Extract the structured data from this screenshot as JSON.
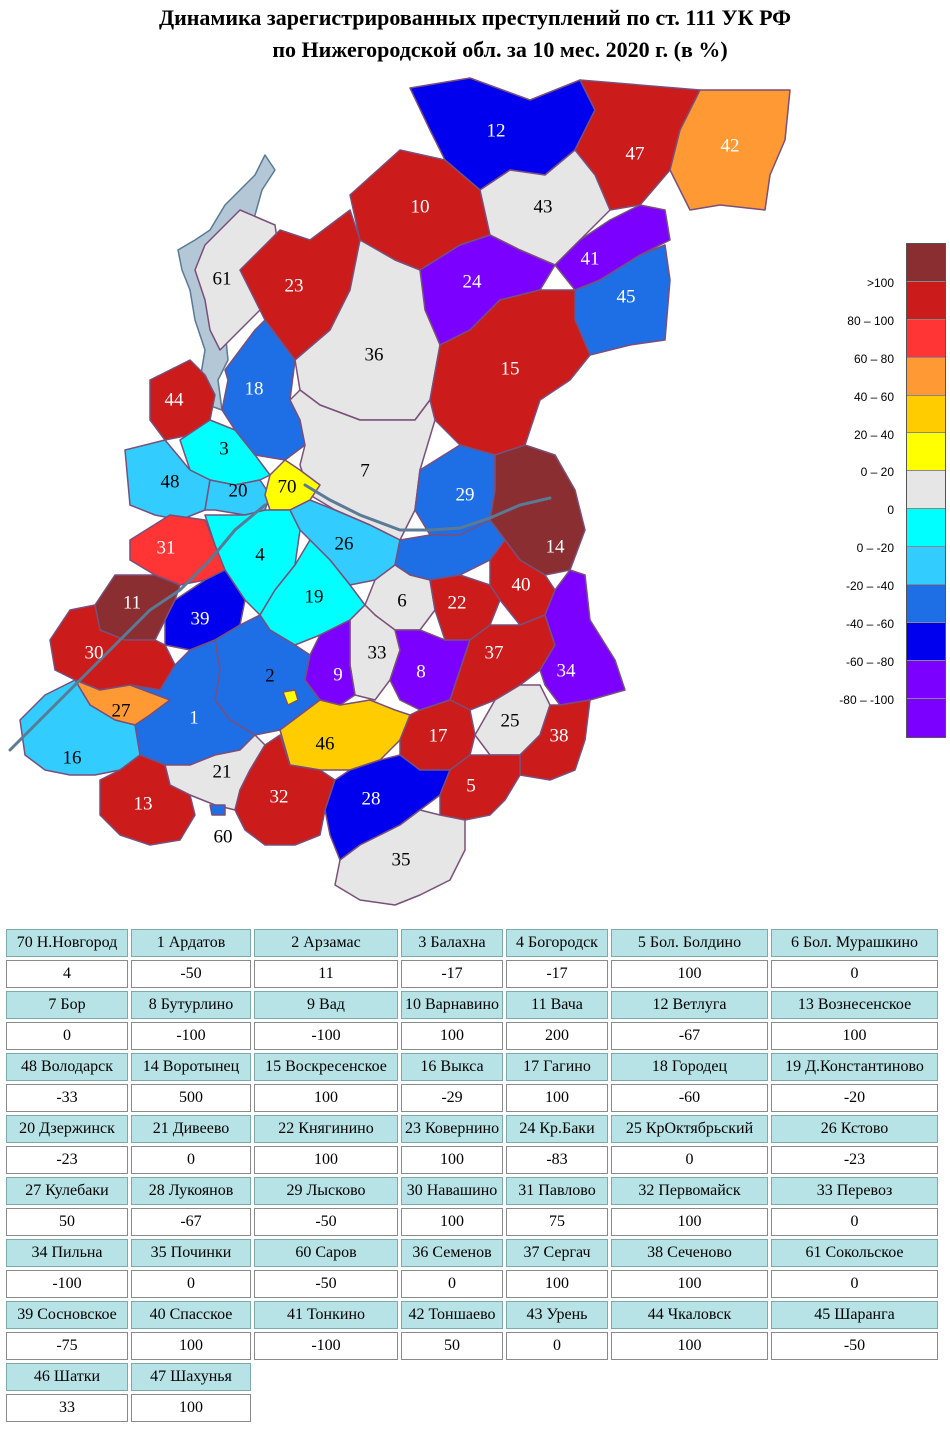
{
  "title": {
    "line1": "Динамика зарегистрированных преступлений по ст. 111 УК РФ",
    "line2": "по Нижегородской обл. за 10 мес. 2020 г. (в %)"
  },
  "legend": [
    {
      "label": "",
      "color": "#8b2e32"
    },
    {
      "label": ">100",
      "color": "#cc1b1b"
    },
    {
      "label": "80 – 100",
      "color": "#ff3535"
    },
    {
      "label": "60 – 80",
      "color": "#ff9933"
    },
    {
      "label": "40 – 60",
      "color": "#ffcc00"
    },
    {
      "label": "20 – 40",
      "color": "#ffff00"
    },
    {
      "label": "0 – 20",
      "color": "#e6e6e6"
    },
    {
      "label": "0",
      "color": "#00ffff"
    },
    {
      "label": "0 – -20",
      "color": "#33ccff"
    },
    {
      "label": "-20 – -40",
      "color": "#1e6fe6"
    },
    {
      "label": "-40 – -60",
      "color": "#0000ee"
    },
    {
      "label": "-60 – -80",
      "color": "#7b00ff"
    },
    {
      "label": "-80 – -100",
      "color": ""
    }
  ],
  "map_labels": [
    "12",
    "47",
    "42",
    "10",
    "43",
    "61",
    "23",
    "24",
    "41",
    "45",
    "36",
    "15",
    "18",
    "44",
    "3",
    "7",
    "48",
    "20",
    "70",
    "29",
    "14",
    "31",
    "4",
    "26",
    "11",
    "39",
    "19",
    "6",
    "22",
    "40",
    "30",
    "33",
    "8",
    "37",
    "34",
    "9",
    "2",
    "27",
    "1",
    "25",
    "46",
    "17",
    "38",
    "16",
    "21",
    "13",
    "32",
    "28",
    "5",
    "60",
    "35"
  ],
  "regions": [
    {
      "name": "70 Н.Новгород",
      "value": "4"
    },
    {
      "name": "1 Ардатов",
      "value": "-50"
    },
    {
      "name": "2 Арзамас",
      "value": "11"
    },
    {
      "name": "3 Балахна",
      "value": "-17"
    },
    {
      "name": "4 Богородск",
      "value": "-17"
    },
    {
      "name": "5 Бол. Болдино",
      "value": "100"
    },
    {
      "name": "6 Бол. Мурашкино",
      "value": "0"
    },
    {
      "name": "7 Бор",
      "value": "0"
    },
    {
      "name": "8 Бутурлино",
      "value": "-100"
    },
    {
      "name": "9 Вад",
      "value": "-100"
    },
    {
      "name": "10 Варнавино",
      "value": "100"
    },
    {
      "name": "11 Вача",
      "value": "200"
    },
    {
      "name": "12 Ветлуга",
      "value": "-67"
    },
    {
      "name": "13 Вознесенское",
      "value": "100"
    },
    {
      "name": "48 Володарск",
      "value": "-33"
    },
    {
      "name": "14 Воротынец",
      "value": "500"
    },
    {
      "name": "15 Воскресенское",
      "value": "100"
    },
    {
      "name": "16 Выкса",
      "value": "-29"
    },
    {
      "name": "17 Гагино",
      "value": "100"
    },
    {
      "name": "18 Городец",
      "value": "-60"
    },
    {
      "name": "19 Д.Константиново",
      "value": "-20"
    },
    {
      "name": "20 Дзержинск",
      "value": "-23"
    },
    {
      "name": "21 Дивеево",
      "value": "0"
    },
    {
      "name": "22 Княгинино",
      "value": "100"
    },
    {
      "name": "23 Ковернино",
      "value": "100"
    },
    {
      "name": "24 Кр.Баки",
      "value": "-83"
    },
    {
      "name": "25 КрОктябрьский",
      "value": "0"
    },
    {
      "name": "26 Кстово",
      "value": "-23"
    },
    {
      "name": "27 Кулебаки",
      "value": "50"
    },
    {
      "name": "28 Лукоянов",
      "value": "-67"
    },
    {
      "name": "29 Лысково",
      "value": "-50"
    },
    {
      "name": "30 Навашино",
      "value": "100"
    },
    {
      "name": "31 Павлово",
      "value": "75"
    },
    {
      "name": "32 Первомайск",
      "value": "100"
    },
    {
      "name": "33 Перевоз",
      "value": "0"
    },
    {
      "name": "34 Пильна",
      "value": "-100"
    },
    {
      "name": "35 Починки",
      "value": "0"
    },
    {
      "name": "60 Саров",
      "value": "-50"
    },
    {
      "name": "36 Семенов",
      "value": "0"
    },
    {
      "name": "37 Сергач",
      "value": "100"
    },
    {
      "name": "38 Сеченово",
      "value": "100"
    },
    {
      "name": "61 Сокольское",
      "value": "0"
    },
    {
      "name": "39 Сосновское",
      "value": "-75"
    },
    {
      "name": "40 Спасское",
      "value": "100"
    },
    {
      "name": "41 Тонкино",
      "value": "-100"
    },
    {
      "name": "42 Тоншаево",
      "value": "50"
    },
    {
      "name": "43 Урень",
      "value": "0"
    },
    {
      "name": "44 Чкаловск",
      "value": "100"
    },
    {
      "name": "45 Шаранга",
      "value": "-50"
    },
    {
      "name": "46 Шатки",
      "value": "33"
    },
    {
      "name": "47 Шахунья",
      "value": "100"
    }
  ]
}
